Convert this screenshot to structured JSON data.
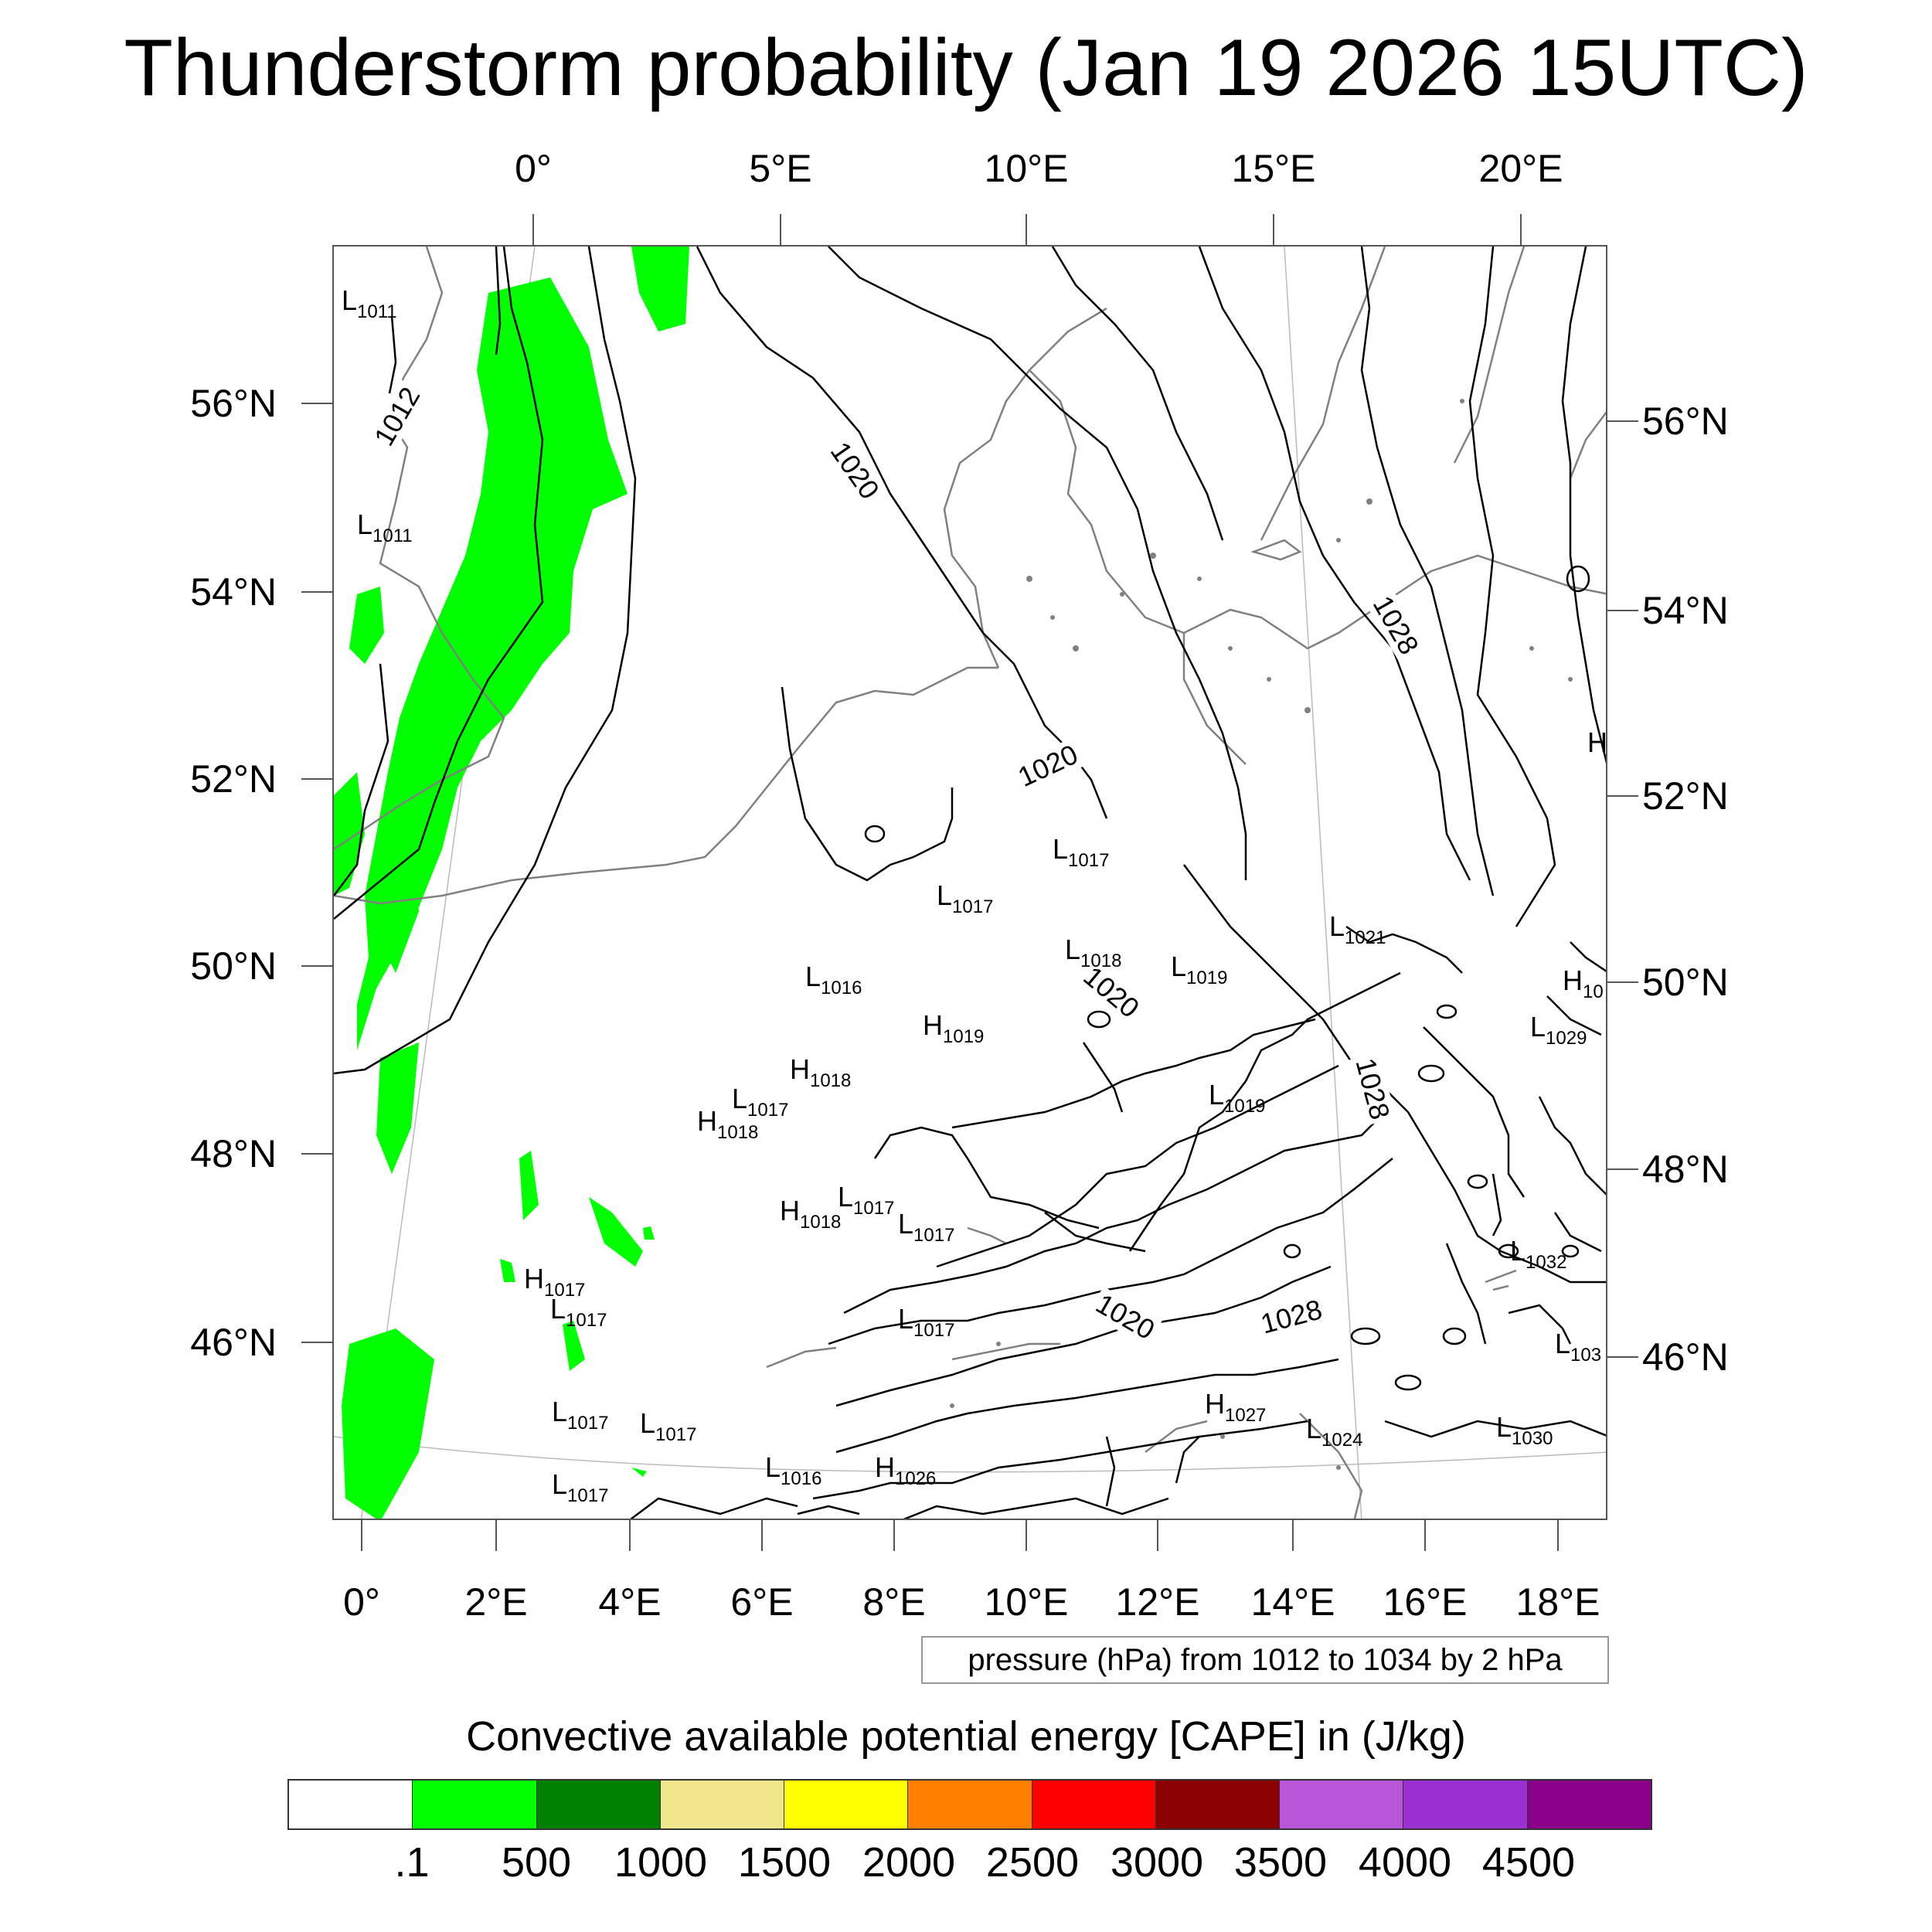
{
  "title": "Thunderstorm probability (Jan 19 2026 15UTC)",
  "top_axis": [
    "0°",
    "5°E",
    "10°E",
    "15°E",
    "20°E"
  ],
  "bottom_axis": [
    "0°",
    "2°E",
    "4°E",
    "6°E",
    "8°E",
    "10°E",
    "12°E",
    "14°E",
    "16°E",
    "18°E"
  ],
  "left_axis": [
    "56°N",
    "54°N",
    "52°N",
    "50°N",
    "48°N",
    "46°N"
  ],
  "right_axis": [
    "56°N",
    "54°N",
    "52°N",
    "50°N",
    "48°N",
    "46°N"
  ],
  "contour_labels": [
    "1012",
    "1020",
    "1020",
    "1020",
    "1020",
    "1028",
    "1028",
    "1028"
  ],
  "pressure_labels": [
    {
      "t": "L",
      "v": "1011"
    },
    {
      "t": "L",
      "v": "1011"
    },
    {
      "t": "L",
      "v": "1017"
    },
    {
      "t": "L",
      "v": "1017"
    },
    {
      "t": "L",
      "v": "1018"
    },
    {
      "t": "L",
      "v": "1019"
    },
    {
      "t": "L",
      "v": "1021"
    },
    {
      "t": "H",
      "v": ""
    },
    {
      "t": "L",
      "v": "1016"
    },
    {
      "t": "H",
      "v": "1019"
    },
    {
      "t": "H",
      "v": "10"
    },
    {
      "t": "L",
      "v": "1029"
    },
    {
      "t": "H",
      "v": "1018"
    },
    {
      "t": "L",
      "v": "1017"
    },
    {
      "t": "H",
      "v": "1018"
    },
    {
      "t": "L",
      "v": "1019"
    },
    {
      "t": "L",
      "v": "1017"
    },
    {
      "t": "H",
      "v": "1018"
    },
    {
      "t": "L",
      "v": "1017"
    },
    {
      "t": "L",
      "v": "1032"
    },
    {
      "t": "H",
      "v": "1017"
    },
    {
      "t": "L",
      "v": "1017"
    },
    {
      "t": "L",
      "v": "1017"
    },
    {
      "t": "L",
      "v": "103"
    },
    {
      "t": "L",
      "v": "1017"
    },
    {
      "t": "L",
      "v": "1017"
    },
    {
      "t": "H",
      "v": "1027"
    },
    {
      "t": "L",
      "v": "1024"
    },
    {
      "t": "L",
      "v": "1030"
    },
    {
      "t": "L",
      "v": "1016"
    },
    {
      "t": "H",
      "v": "1026"
    },
    {
      "t": "L",
      "v": "1017"
    }
  ],
  "pressure_note": "pressure (hPa) from 1012 to 1034 by 2 hPa",
  "colorbar": {
    "title": "Convective available potential energy [CAPE] in (J/kg)",
    "colors": [
      "#ffffff",
      "#00ff00",
      "#008000",
      "#f0e68c",
      "#ffff00",
      "#ff8000",
      "#ff0000",
      "#8b0000",
      "#b855d8",
      "#9a30d0",
      "#8b008b"
    ],
    "ticks": [
      ".1",
      "500",
      "1000",
      "1500",
      "2000",
      "2500",
      "3000",
      "3500",
      "4000",
      "4500"
    ]
  }
}
